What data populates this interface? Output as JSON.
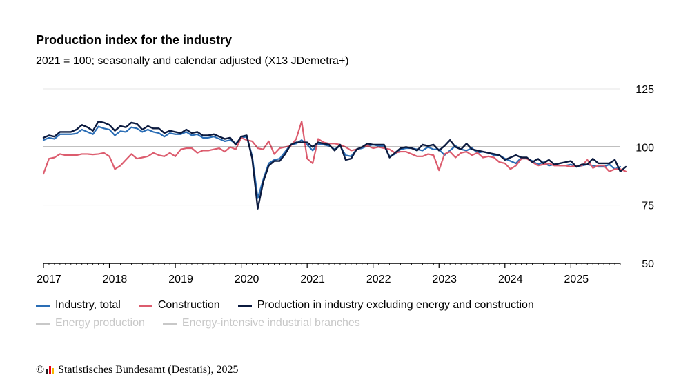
{
  "header": {
    "title": "Production index for the industry",
    "subtitle": "2021 = 100; seasonally and calendar adjusted (X13 JDemetra+)"
  },
  "footer": {
    "copyright_symbol": "©",
    "source": "Statistisches Bundesamt (Destatis), 2025",
    "logo_colors": [
      "#1f1f1f",
      "#e3001b",
      "#f5b800"
    ]
  },
  "legend": {
    "active": [
      {
        "name": "Industry, total",
        "color": "#2a6db5"
      },
      {
        "name": "Construction",
        "color": "#dc5c6e"
      },
      {
        "name": "Production in industry excluding energy and construction",
        "color": "#0b1a3f"
      }
    ],
    "inactive": [
      {
        "name": "Energy production",
        "color": "#c8c8c8"
      },
      {
        "name": "Energy-intensive industrial branches",
        "color": "#c8c8c8"
      }
    ]
  },
  "chart_data": {
    "type": "line",
    "x_start": "2017-01",
    "frequency": "monthly",
    "x_tick_labels": [
      "2017",
      "2018",
      "2019",
      "2020",
      "2021",
      "2022",
      "2023",
      "2024",
      "2025"
    ],
    "y_tick_labels": [
      "125",
      "100",
      "75",
      "50"
    ],
    "ylim": [
      50,
      125
    ],
    "reference_line": 100,
    "y_axis_side": "right",
    "grid": true,
    "legend_position": "bottom",
    "series": [
      {
        "name": "Industry, total",
        "color": "#2a6db5",
        "values": [
          103,
          104,
          103.5,
          105.5,
          105.5,
          105.5,
          105.8,
          107.5,
          106.5,
          105.5,
          108.8,
          108,
          107.5,
          105,
          106.8,
          106.5,
          108.5,
          108,
          106.5,
          107.5,
          106.5,
          106,
          104.5,
          106,
          105.5,
          105.5,
          106.5,
          105,
          105.5,
          104,
          104,
          104.5,
          103.5,
          102.5,
          103,
          101.5,
          104,
          104.5,
          96,
          78,
          86,
          93,
          94.5,
          95,
          98,
          101,
          101.5,
          103,
          101,
          98.5,
          101.5,
          101,
          100.5,
          99,
          100.5,
          96.5,
          96,
          99,
          99.5,
          100.5,
          101,
          100.5,
          100.5,
          96,
          97,
          99,
          99.5,
          99.5,
          99,
          98.5,
          100,
          99,
          99,
          96.5,
          98.5,
          100.5,
          99,
          98.5,
          99.5,
          97.5,
          98,
          97.5,
          96.5,
          96.5,
          95,
          94,
          93,
          95.5,
          95,
          94,
          92.5,
          93.5,
          92,
          92.5,
          92,
          92,
          92.5,
          91.5,
          92,
          92.5,
          92,
          91.5,
          91.5,
          92.5,
          90.5,
          91.5
        ]
      },
      {
        "name": "Construction",
        "color": "#dc5c6e",
        "values": [
          88.5,
          95,
          95.5,
          97,
          96.5,
          96.5,
          96.5,
          97,
          97,
          96.8,
          97,
          97.5,
          96,
          90.5,
          92,
          94.5,
          97,
          95,
          95.5,
          96,
          97.5,
          96.5,
          96,
          97.5,
          96,
          99,
          99.5,
          99.5,
          97.5,
          98.5,
          98.5,
          99,
          99.5,
          98,
          100,
          99,
          104,
          103,
          102.5,
          99.5,
          99,
          102.5,
          97,
          99.5,
          100,
          100.5,
          103.5,
          111,
          95,
          93,
          103.5,
          102,
          101.5,
          101.5,
          101,
          100,
          98.5,
          99,
          100,
          100.5,
          99.5,
          100,
          99.5,
          99,
          97.5,
          98,
          98,
          97,
          96,
          96,
          97,
          96.5,
          90,
          97,
          98,
          95.5,
          97.5,
          98,
          96.5,
          97.5,
          95.5,
          96,
          95.5,
          93.5,
          93,
          90.5,
          92,
          95,
          95,
          93.5,
          92,
          92.5,
          93,
          92,
          92,
          92,
          91.5,
          92,
          92,
          94.5,
          91,
          92,
          92,
          89.5,
          90.5,
          90.5,
          89.5
        ]
      },
      {
        "name": "Production in industry excluding energy and construction",
        "color": "#0b1a3f",
        "values": [
          104,
          105,
          104.5,
          106.5,
          106.5,
          106.5,
          107.5,
          109.5,
          108.5,
          107,
          111,
          110.5,
          109.5,
          107,
          109,
          108.5,
          110.5,
          110,
          107.5,
          109,
          108,
          108,
          106,
          107,
          106.5,
          106,
          107.5,
          106,
          106.5,
          105,
          105,
          105.5,
          104.5,
          103.5,
          104,
          101,
          104.5,
          105,
          95,
          73.5,
          85,
          92,
          94,
          94,
          97,
          101,
          102,
          102,
          102,
          100,
          102,
          101.5,
          101,
          98.5,
          101,
          94.5,
          95,
          99,
          100,
          101.5,
          101,
          101,
          101,
          95.5,
          97.5,
          99.5,
          100,
          99.5,
          98.5,
          101,
          100.5,
          101,
          98.5,
          100.5,
          103,
          100,
          99,
          101.5,
          99,
          98.5,
          98,
          97.5,
          97,
          96.5,
          94.5,
          95.5,
          96.5,
          95.5,
          95.5,
          93.5,
          95,
          93,
          94.5,
          92.5,
          93,
          93.5,
          94,
          91.5,
          92.5,
          92.5,
          95,
          93,
          93,
          93,
          94.5,
          89.5,
          91.5
        ]
      }
    ]
  }
}
